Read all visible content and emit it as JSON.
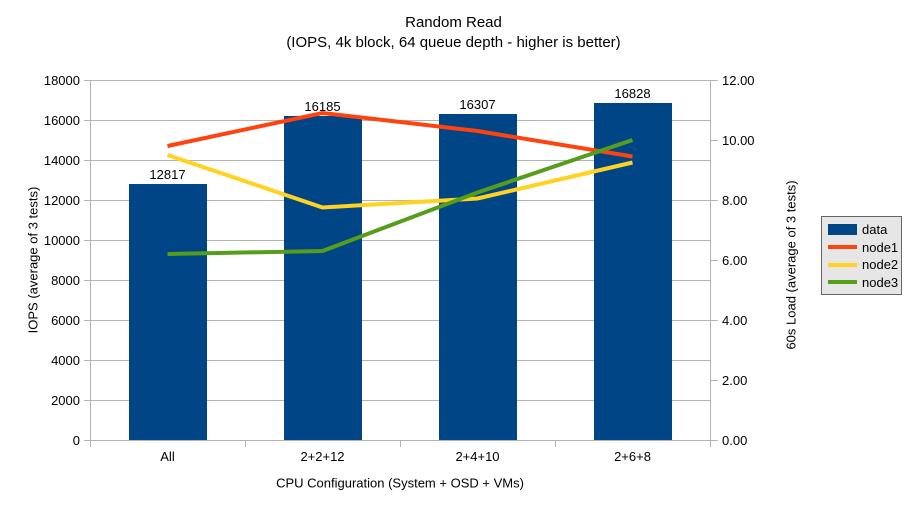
{
  "chart_data": {
    "type": "bar+line",
    "title": "Random Read",
    "subtitle": "(IOPS, 4k block, 64 queue depth - higher is better)",
    "categories": [
      "All",
      "2+2+12",
      "2+4+10",
      "2+6+8"
    ],
    "bar_series": {
      "name": "data",
      "color": "#004586",
      "axis": "left",
      "values": [
        12817,
        16185,
        16307,
        16828
      ],
      "value_labels": [
        "12817",
        "16185",
        "16307",
        "16828"
      ]
    },
    "line_series": [
      {
        "name": "node1",
        "color": "#ff420e",
        "axis": "right",
        "values": [
          9.8,
          10.9,
          10.3,
          9.45
        ]
      },
      {
        "name": "node2",
        "color": "#ffd320",
        "axis": "right",
        "values": [
          9.5,
          7.75,
          8.05,
          9.25
        ]
      },
      {
        "name": "node3",
        "color": "#579d1c",
        "axis": "right",
        "values": [
          6.2,
          6.3,
          8.25,
          10.0
        ]
      }
    ],
    "axis_left": {
      "title": "IOPS (average of 3 tests)",
      "min": 0,
      "max": 18000,
      "step": 2000,
      "tick_labels": [
        "0",
        "2000",
        "4000",
        "6000",
        "8000",
        "10000",
        "12000",
        "14000",
        "16000",
        "18000"
      ]
    },
    "axis_right": {
      "title": "60s Load (average of 3 tests)",
      "min": 0,
      "max": 12,
      "step": 2,
      "tick_labels": [
        "0.00",
        "2.00",
        "4.00",
        "6.00",
        "8.00",
        "10.00",
        "12.00"
      ]
    },
    "axis_x": {
      "title": "CPU Configuration (System + OSD + VMs)"
    },
    "legend": {
      "position": "right",
      "entries": [
        {
          "label": "data",
          "swatch": "bar",
          "color": "#004586"
        },
        {
          "label": "node1",
          "swatch": "line",
          "color": "#ff420e"
        },
        {
          "label": "node2",
          "swatch": "line",
          "color": "#ffd320"
        },
        {
          "label": "node3",
          "swatch": "line",
          "color": "#579d1c"
        }
      ]
    },
    "grid": true,
    "styles": {
      "grid_color": "#b3b3b3",
      "axis_color": "#b3b3b3",
      "text_color": "#000000",
      "background": "#ffffff",
      "legend_bg": "#e6e6e6",
      "legend_border": "#666666"
    }
  }
}
